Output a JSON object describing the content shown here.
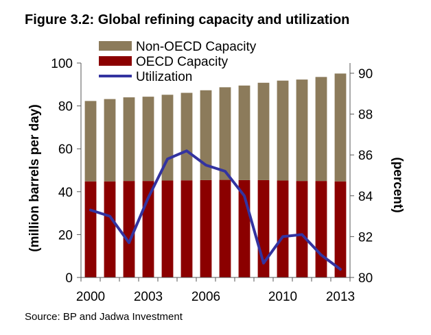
{
  "title": "Figure 3.2: Global refining capacity and utilization",
  "source": "Source: BP and Jadwa Investment",
  "colors": {
    "non_oecd": "#8c7b5b",
    "oecd": "#8b0000",
    "utilization": "#3333a0",
    "axis": "#555555"
  },
  "chart_data": {
    "type": "bar",
    "stacked": true,
    "title": "Figure 3.2: Global refining capacity and utilization",
    "x": [
      2000,
      2001,
      2002,
      2003,
      2004,
      2005,
      2006,
      2007,
      2008,
      2009,
      2010,
      2011,
      2012,
      2013
    ],
    "x_tick_labels": [
      {
        "year": 2000,
        "label": "2000"
      },
      {
        "year": 2003,
        "label": "2003"
      },
      {
        "year": 2006,
        "label": "2006"
      },
      {
        "year": 2010,
        "label": "2010"
      },
      {
        "year": 2013,
        "label": "2013"
      }
    ],
    "series": [
      {
        "name": "OECD Capacity",
        "axis": "left",
        "kind": "bar",
        "values": [
          44.8,
          44.8,
          45.0,
          45.0,
          45.2,
          45.3,
          45.4,
          45.5,
          45.4,
          45.4,
          45.2,
          45.0,
          45.0,
          44.8
        ]
      },
      {
        "name": "Non-OECD Capacity",
        "axis": "left",
        "kind": "bar",
        "values": [
          37.5,
          38.4,
          39.0,
          39.3,
          40.0,
          40.8,
          41.9,
          43.2,
          44.1,
          45.4,
          46.6,
          47.3,
          48.5,
          50.3
        ]
      },
      {
        "name": "Utilization",
        "axis": "right",
        "kind": "line",
        "values": [
          83.3,
          83.0,
          81.7,
          83.9,
          85.8,
          86.2,
          85.5,
          85.2,
          84.0,
          80.7,
          82.0,
          82.1,
          81.1,
          80.4
        ]
      }
    ],
    "legend": [
      "Non-OECD Capacity",
      "OECD Capacity",
      "Utilization"
    ],
    "legend_position": "top-left",
    "ylabel_left": "(million barrels per day)",
    "ylabel_right": "(percent)",
    "ylim_left": [
      0,
      100
    ],
    "yticks_left": [
      "0",
      "20",
      "40",
      "60",
      "80",
      "100"
    ],
    "ylim_right": [
      80,
      90.5
    ],
    "yticks_right": [
      "80",
      "82",
      "84",
      "86",
      "88",
      "90"
    ]
  }
}
